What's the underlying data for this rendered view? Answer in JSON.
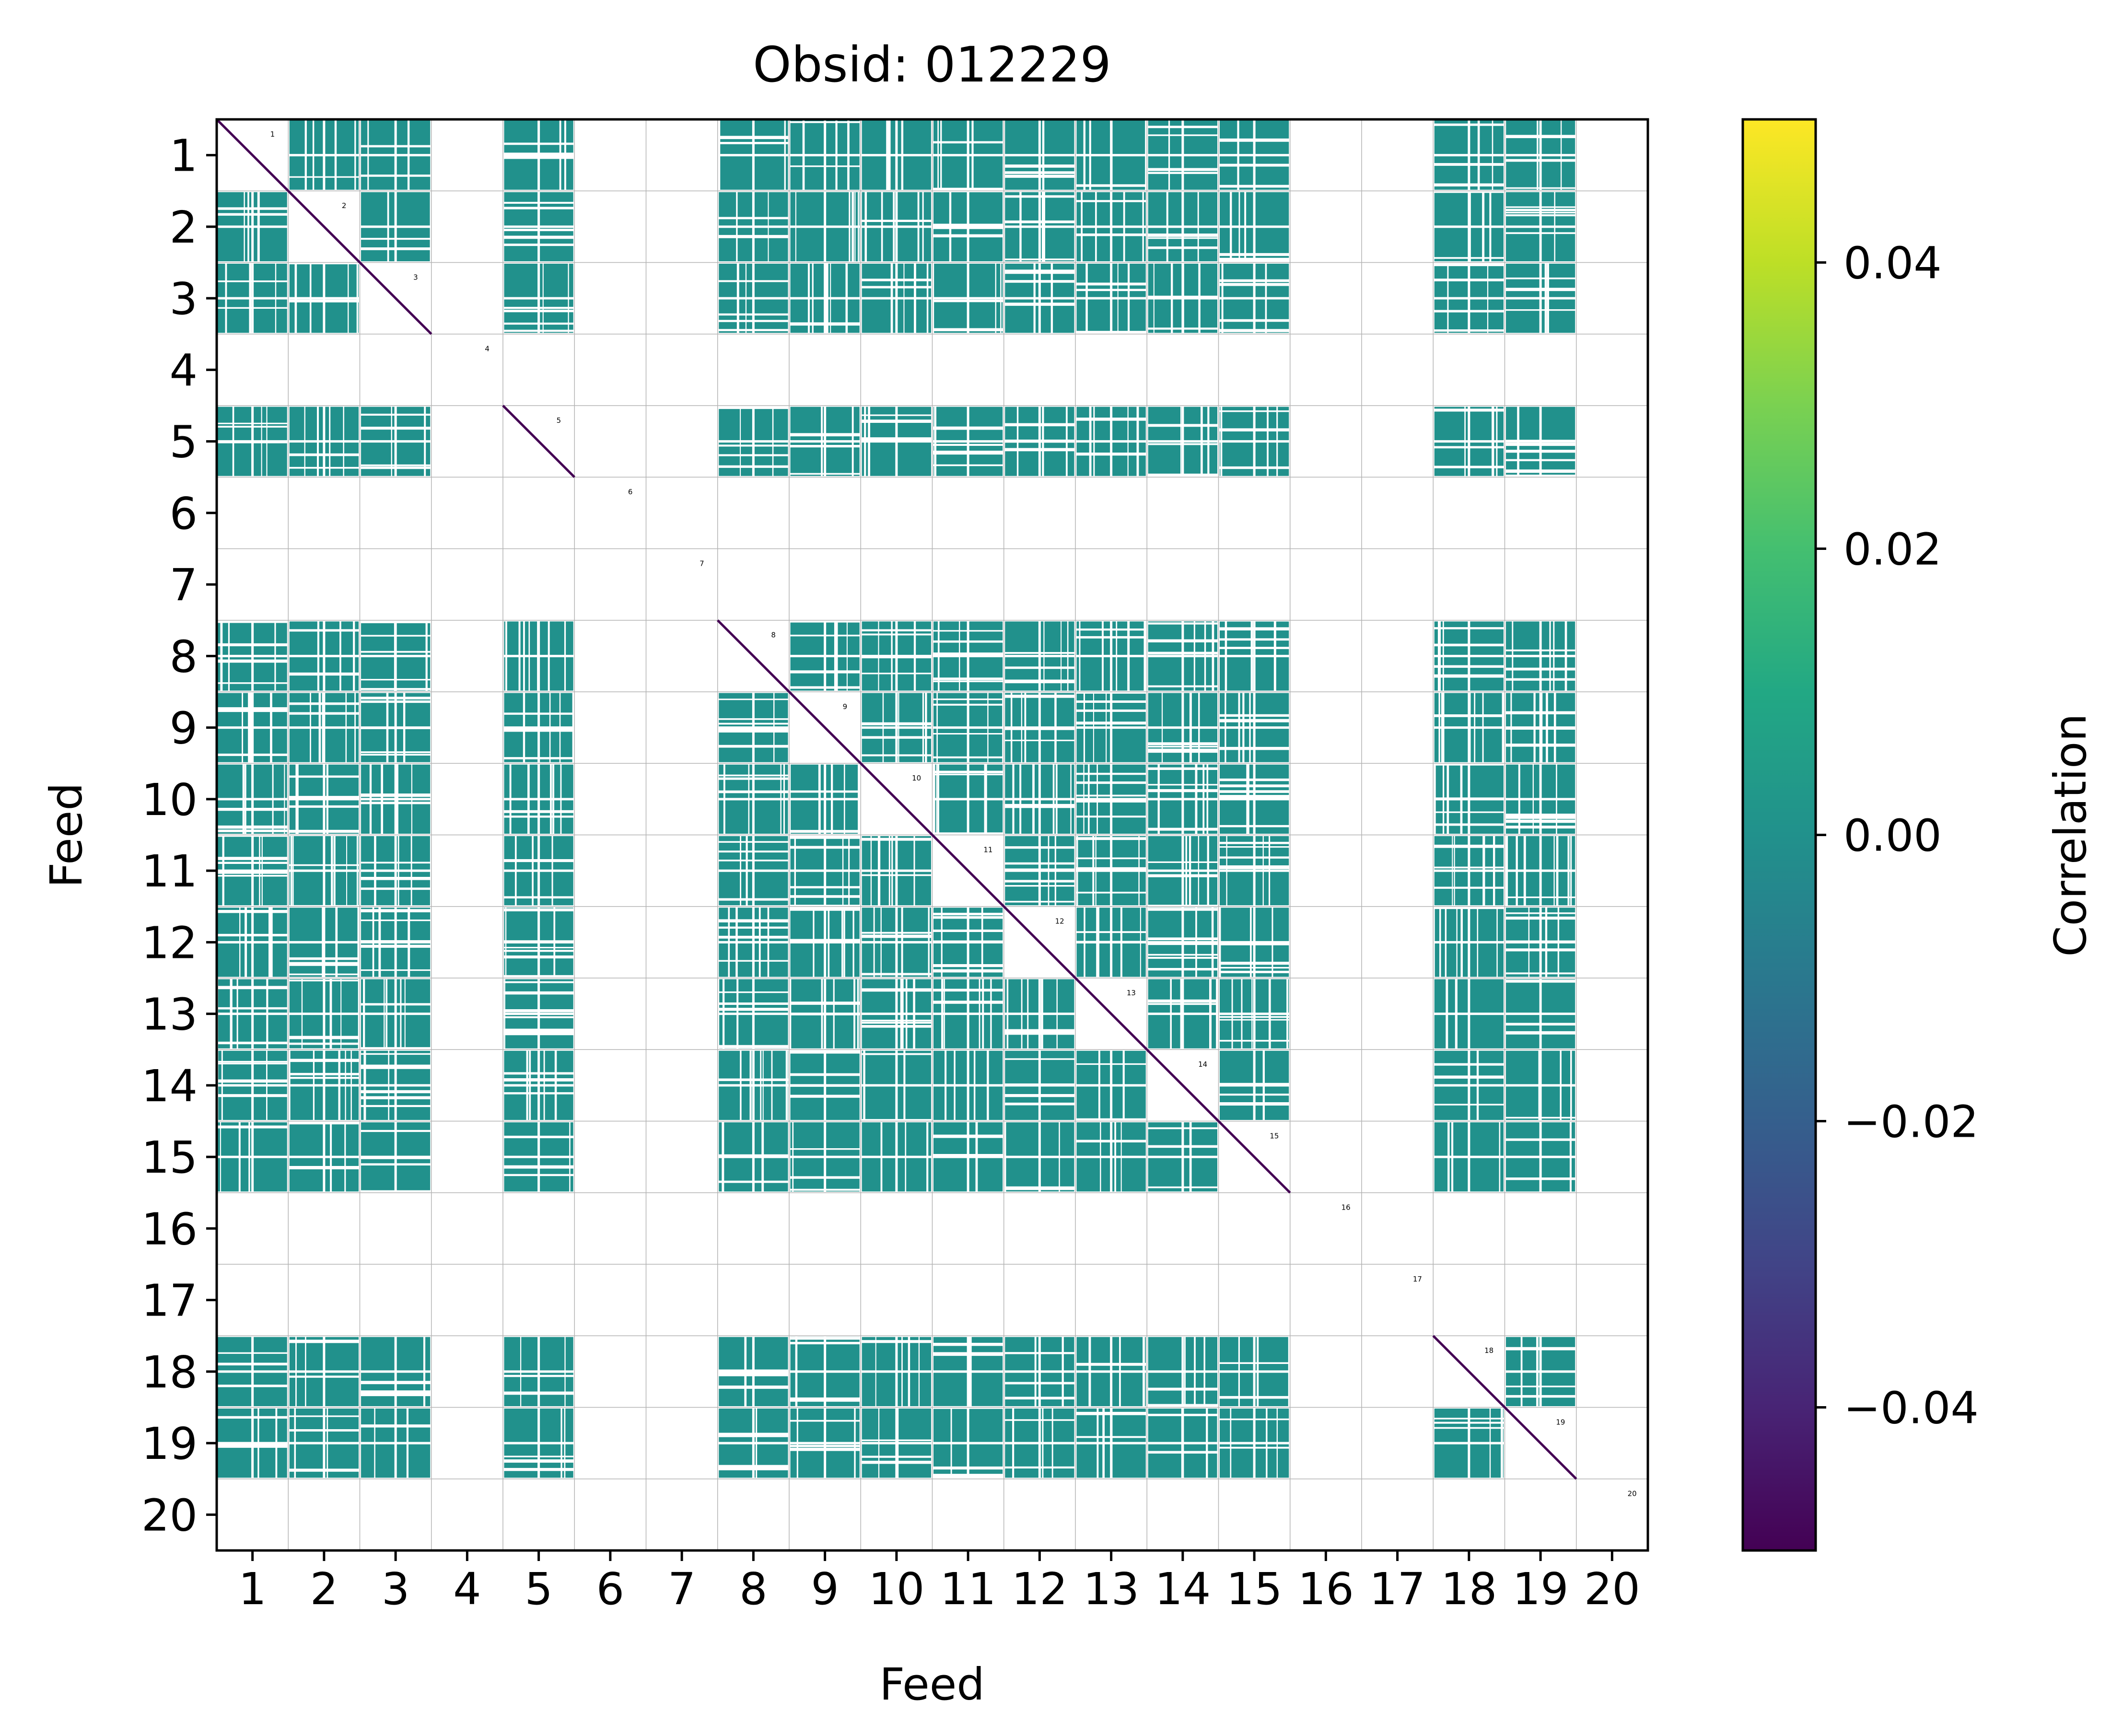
{
  "chart_data": {
    "type": "heatmap",
    "title": "Obsid: 012229",
    "xlabel": "Feed",
    "ylabel": "Feed",
    "feeds": [
      "1",
      "2",
      "3",
      "4",
      "5",
      "6",
      "7",
      "8",
      "9",
      "10",
      "11",
      "12",
      "13",
      "14",
      "15",
      "16",
      "17",
      "18",
      "19",
      "20"
    ],
    "active_feeds": [
      1,
      2,
      3,
      5,
      8,
      9,
      10,
      11,
      12,
      13,
      14,
      15,
      18,
      19
    ],
    "inactive_feeds": [
      4,
      6,
      7,
      16,
      17,
      20
    ],
    "value_range": [
      -0.05,
      0.05
    ],
    "off_diagonal_value": 0.0,
    "diagonal_value": -0.05,
    "colormap": "viridis",
    "colorbar": {
      "label": "Correlation",
      "ticks": [
        -0.04,
        -0.02,
        0.0,
        0.02,
        0.04
      ],
      "tick_labels": [
        "−0.04",
        "−0.02",
        "0.00",
        "0.02",
        "0.04"
      ]
    },
    "block_labels": [
      "1",
      "2",
      "3",
      "4",
      "5",
      "6",
      "7",
      "8",
      "9",
      "10",
      "11",
      "12",
      "13",
      "14",
      "15",
      "16",
      "17",
      "18",
      "19",
      "20"
    ],
    "grid": true
  },
  "colors": {
    "cell": "#21918c",
    "diagonal": "#440154",
    "grid": "#b4b4b4",
    "background": "#ffffff"
  }
}
